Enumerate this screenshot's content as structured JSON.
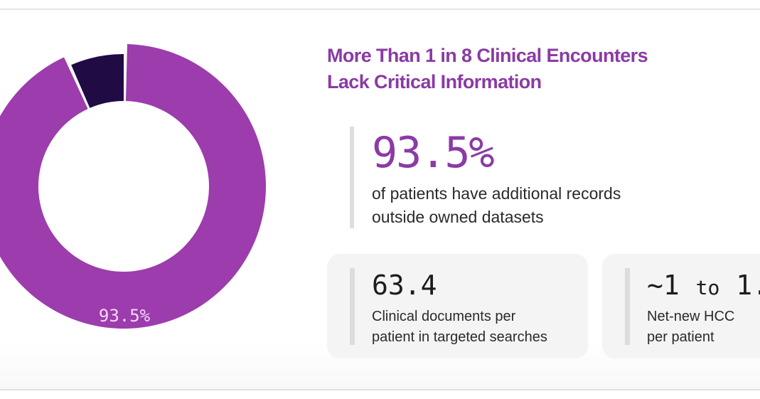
{
  "chart_data": {
    "type": "pie",
    "variant": "donut",
    "slices": [
      {
        "value": 93.5,
        "color": "#9d3cad",
        "label": "93.5%"
      },
      {
        "value": 6.5,
        "color": "#200b45"
      }
    ]
  },
  "title": "More Than 1 in 8 Clinical Encounters Lack Critical Information",
  "title_lines": [
    "More Than 1 in 8 Clinical Encounters",
    "Lack Critical Information"
  ],
  "hero": {
    "value": "93.5%",
    "desc_lines": [
      "of patients have additional records",
      "outside owned datasets"
    ]
  },
  "cards": [
    {
      "value": "63.4",
      "desc_lines": [
        "Clinical documents per",
        "patient in targeted searches"
      ]
    },
    {
      "value_a": "~1",
      "value_to": "to",
      "value_b": "1.",
      "desc_lines": [
        "Net-new HCC",
        "per patient"
      ]
    }
  ]
}
